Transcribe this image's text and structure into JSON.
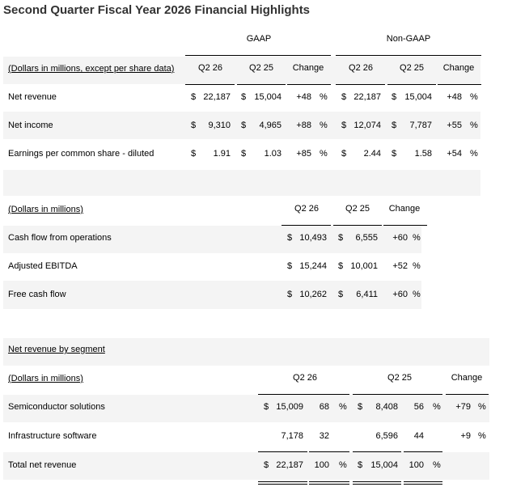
{
  "title": "Second Quarter Fiscal Year 2026 Financial Highlights",
  "table1": {
    "group_labels": {
      "gaap": "GAAP",
      "non_gaap": "Non-GAAP"
    },
    "header_label": "(Dollars in millions, except per share data)",
    "columns": [
      "Q2 26",
      "Q2 25",
      "Change",
      "Q2 26",
      "Q2 25",
      "Change"
    ],
    "currency_symbol": "$",
    "percent_symbol": "%",
    "rows": [
      {
        "label": "Net revenue",
        "gaap_q2_26": "22,187",
        "gaap_q2_25": "15,004",
        "gaap_change": "+48",
        "non_gaap_q2_26": "22,187",
        "non_gaap_q2_25": "15,004",
        "non_gaap_change": "+48"
      },
      {
        "label": "Net income",
        "gaap_q2_26": "9,310",
        "gaap_q2_25": "4,965",
        "gaap_change": "+88",
        "non_gaap_q2_26": "12,074",
        "non_gaap_q2_25": "7,787",
        "non_gaap_change": "+55"
      },
      {
        "label": "Earnings per common share - diluted",
        "gaap_q2_26": "1.91",
        "gaap_q2_25": "1.03",
        "gaap_change": "+85",
        "non_gaap_q2_26": "2.44",
        "non_gaap_q2_25": "1.58",
        "non_gaap_change": "+54"
      }
    ]
  },
  "table2": {
    "header_label": "(Dollars in millions)",
    "columns": [
      "Q2 26",
      "Q2 25",
      "Change"
    ],
    "rows": [
      {
        "label": "Cash flow from operations",
        "q2_26": "10,493",
        "q2_25": "6,555",
        "change": "+60"
      },
      {
        "label": "Adjusted EBITDA",
        "q2_26": "15,244",
        "q2_25": "10,001",
        "change": "+52"
      },
      {
        "label": "Free cash flow",
        "q2_26": "10,262",
        "q2_25": "6,411",
        "change": "+60"
      }
    ]
  },
  "table3": {
    "section_label": "Net revenue by segment",
    "header_label": "(Dollars in millions)",
    "columns": [
      "Q2 26",
      "Q2 25",
      "Change"
    ],
    "rows": [
      {
        "label": "Semiconductor solutions",
        "q2_26_sym": "$",
        "q2_26": "15,009",
        "q2_26_pct": "68",
        "q2_26_pct_sym": "%",
        "q2_25_sym": "$",
        "q2_25": "8,408",
        "q2_25_pct": "56",
        "q2_25_pct_sym": "%",
        "change": "+79"
      },
      {
        "label": "Infrastructure software",
        "q2_26_sym": "",
        "q2_26": "7,178",
        "q2_26_pct": "32",
        "q2_26_pct_sym": "",
        "q2_25_sym": "",
        "q2_25": "6,596",
        "q2_25_pct": "44",
        "q2_25_pct_sym": "",
        "change": "+9"
      },
      {
        "label": "Total net revenue",
        "q2_26_sym": "$",
        "q2_26": "22,187",
        "q2_26_pct": "100",
        "q2_26_pct_sym": "%",
        "q2_25_sym": "$",
        "q2_25": "15,004",
        "q2_25_pct": "100",
        "q2_25_pct_sym": "%",
        "change": ""
      }
    ]
  }
}
